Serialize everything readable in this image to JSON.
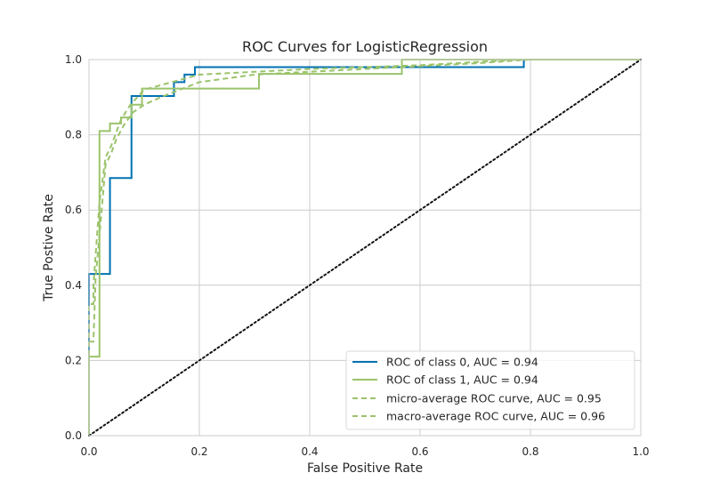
{
  "chart_data": {
    "type": "line",
    "title": "ROC Curves for LogisticRegression",
    "xlabel": "False Positive Rate",
    "ylabel": "True Postive Rate",
    "xlim": [
      0.0,
      1.0
    ],
    "ylim": [
      0.0,
      1.0
    ],
    "xticks": [
      "0.0",
      "0.2",
      "0.4",
      "0.6",
      "0.8",
      "1.0"
    ],
    "yticks": [
      "0.0",
      "0.2",
      "0.4",
      "0.6",
      "0.8",
      "1.0"
    ],
    "grid": true,
    "legend_position": "lower-right",
    "series": [
      {
        "name": "ROC of class 0, AUC = 0.94",
        "color": "#0072B2",
        "dash": "solid",
        "x": [
          0.0,
          0.0,
          0.038,
          0.038,
          0.077,
          0.077,
          0.154,
          0.154,
          0.173,
          0.173,
          0.192,
          0.192,
          0.788,
          0.788,
          1.0
        ],
        "y": [
          0.0,
          0.43,
          0.43,
          0.685,
          0.685,
          0.903,
          0.903,
          0.94,
          0.94,
          0.96,
          0.96,
          0.98,
          0.98,
          1.0,
          1.0
        ]
      },
      {
        "name": "ROC of class 1, AUC = 0.94",
        "color": "#9BC36B",
        "dash": "solid",
        "x": [
          0.0,
          0.0,
          0.019,
          0.019,
          0.038,
          0.038,
          0.058,
          0.058,
          0.077,
          0.077,
          0.096,
          0.096,
          0.308,
          0.308,
          0.567,
          0.567,
          1.0
        ],
        "y": [
          0.0,
          0.21,
          0.21,
          0.81,
          0.81,
          0.83,
          0.83,
          0.846,
          0.846,
          0.88,
          0.88,
          0.923,
          0.923,
          0.962,
          0.962,
          1.0,
          1.0
        ]
      },
      {
        "name": "micro-average ROC curve, AUC = 0.95",
        "color": "#9BC36B",
        "dash": "dashed",
        "x": [
          0.0,
          0.0,
          0.008,
          0.008,
          0.019,
          0.03,
          0.04,
          0.058,
          0.075,
          0.1,
          0.2,
          0.4,
          0.6,
          0.78,
          1.0
        ],
        "y": [
          0.0,
          0.35,
          0.35,
          0.4,
          0.62,
          0.74,
          0.77,
          0.84,
          0.88,
          0.92,
          0.96,
          0.975,
          0.985,
          1.0,
          1.0
        ]
      },
      {
        "name": "macro-average ROC curve, AUC = 0.96",
        "color": "#9BC36B",
        "dash": "dashed",
        "x": [
          0.0,
          0.008,
          0.012,
          0.02,
          0.03,
          0.04,
          0.05,
          0.065,
          0.08,
          0.1,
          0.13,
          0.2,
          0.3,
          0.5,
          0.7,
          0.8,
          1.0
        ],
        "y": [
          0.25,
          0.25,
          0.42,
          0.55,
          0.72,
          0.75,
          0.79,
          0.83,
          0.86,
          0.88,
          0.9,
          0.94,
          0.96,
          0.975,
          0.99,
          1.0,
          1.0
        ]
      },
      {
        "name": "",
        "color": "#111111",
        "dash": "dotted",
        "x": [
          0.0,
          1.0
        ],
        "y": [
          0.0,
          1.0
        ]
      }
    ]
  }
}
